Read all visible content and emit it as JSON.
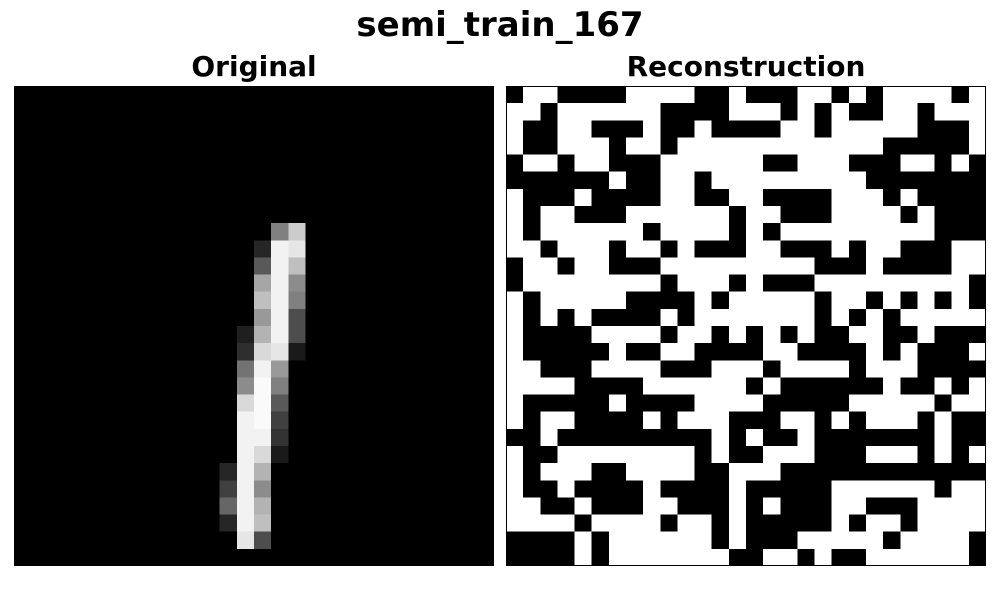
{
  "title": "semi_train_167",
  "chart_data": [
    {
      "type": "heatmap",
      "title": "Original",
      "grid_size": 28,
      "colormap": "gray",
      "value_range": [
        0,
        1
      ],
      "axes_visible": false,
      "cells": [
        [
          8,
          15,
          0.5
        ],
        [
          8,
          16,
          0.8
        ],
        [
          9,
          14,
          0.15
        ],
        [
          9,
          15,
          0.95
        ],
        [
          9,
          16,
          0.9
        ],
        [
          10,
          14,
          0.35
        ],
        [
          10,
          15,
          0.95
        ],
        [
          10,
          16,
          0.75
        ],
        [
          11,
          14,
          0.65
        ],
        [
          11,
          15,
          0.95
        ],
        [
          11,
          16,
          0.55
        ],
        [
          12,
          14,
          0.75
        ],
        [
          12,
          15,
          0.95
        ],
        [
          12,
          16,
          0.5
        ],
        [
          13,
          14,
          0.6
        ],
        [
          13,
          15,
          0.95
        ],
        [
          13,
          16,
          0.3
        ],
        [
          14,
          13,
          0.12
        ],
        [
          14,
          14,
          0.7
        ],
        [
          14,
          15,
          0.95
        ],
        [
          14,
          16,
          0.3
        ],
        [
          15,
          13,
          0.18
        ],
        [
          15,
          14,
          0.85
        ],
        [
          15,
          15,
          0.9
        ],
        [
          15,
          16,
          0.1
        ],
        [
          16,
          13,
          0.45
        ],
        [
          16,
          14,
          0.95
        ],
        [
          16,
          15,
          0.6
        ],
        [
          17,
          13,
          0.55
        ],
        [
          17,
          14,
          0.98
        ],
        [
          17,
          15,
          0.5
        ],
        [
          18,
          13,
          0.85
        ],
        [
          18,
          14,
          0.98
        ],
        [
          18,
          15,
          0.35
        ],
        [
          19,
          13,
          0.95
        ],
        [
          19,
          14,
          0.98
        ],
        [
          19,
          15,
          0.25
        ],
        [
          20,
          13,
          0.95
        ],
        [
          20,
          14,
          0.95
        ],
        [
          20,
          15,
          0.2
        ],
        [
          21,
          13,
          0.95
        ],
        [
          21,
          14,
          0.85
        ],
        [
          21,
          15,
          0.1
        ],
        [
          22,
          12,
          0.15
        ],
        [
          22,
          13,
          0.95
        ],
        [
          22,
          14,
          0.7
        ],
        [
          23,
          12,
          0.25
        ],
        [
          23,
          13,
          0.95
        ],
        [
          23,
          14,
          0.55
        ],
        [
          24,
          12,
          0.4
        ],
        [
          24,
          13,
          0.95
        ],
        [
          24,
          14,
          0.7
        ],
        [
          25,
          12,
          0.15
        ],
        [
          25,
          13,
          0.95
        ],
        [
          25,
          14,
          0.75
        ],
        [
          26,
          13,
          0.9
        ],
        [
          26,
          14,
          0.3
        ]
      ]
    },
    {
      "type": "heatmap",
      "title": "Reconstruction",
      "grid_size": 28,
      "colormap": "binary",
      "value_range": [
        0,
        1
      ],
      "axes_visible": false,
      "rows": [
        "0110000111100100011010111101",
        "1101111110000111010100110111",
        "1001100010010000110111110001",
        "1001110110111111111111000001",
        "0110110001111110011100011010",
        "0000001001101111111110000000",
        "1000100001100110000111010000",
        "1011000111111011000111101000",
        "1011111101111010111111111000",
        "1101110110100011000101100011",
        "0110110001111111110001000011",
        "0111111110111010001111111110",
        "1011111000010111110110101010",
        "1010100001011111110101011111",
        "1000011110110101010011001000",
        "1000001001100001100001010001",
        "1100011110001110111101110000",
        "1111000011111101000000100101",
        "1000001000011110000011111011",
        "1011000010111000110101110100",
        "0010000000001010010000000100",
        "1001111111101001110001110101",
        "1011100111100111000000000000",
        "1001000010000100000111111011",
        "1100100011000101000110001111",
        "1111011110110100000101101111",
        "0000101111110100011111011110",
        "0000101111111001101001111110"
      ]
    }
  ]
}
